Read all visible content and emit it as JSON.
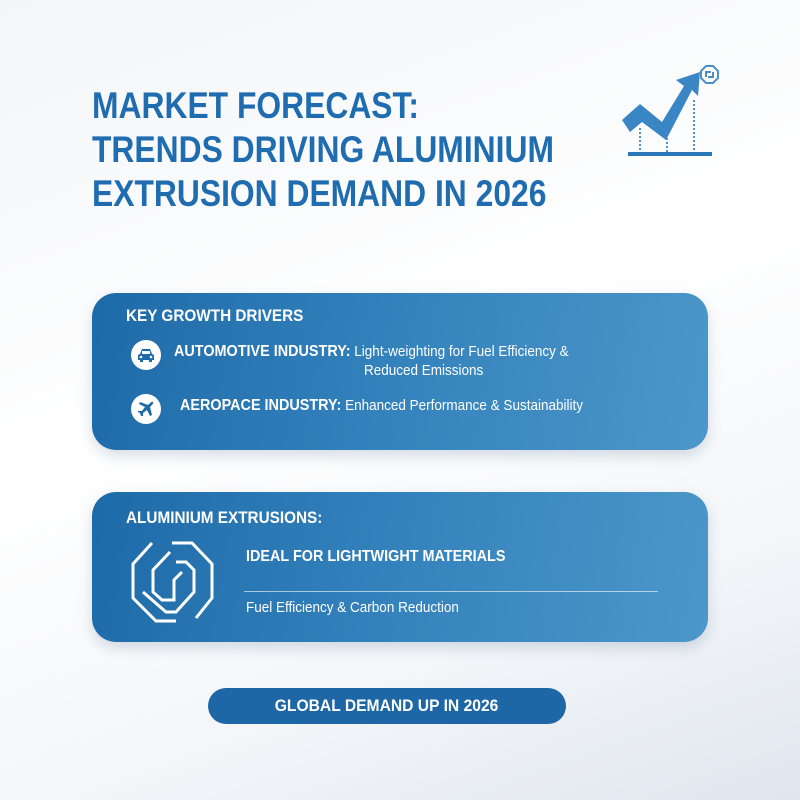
{
  "title": {
    "line1": "MARKET FORECAST:",
    "line2": "TRENDS DRIVING ALUMINIUM",
    "line3": "EXTRUSION DEMAND IN 2026"
  },
  "drivers": {
    "heading": "KEY GROWTH DRIVERS",
    "items": [
      {
        "icon": "car-icon",
        "label": "AUTOMOTIVE INDUSTRY:",
        "text": "Light-weighting for Fuel Efficiency &",
        "text2": "Reduced Emissions"
      },
      {
        "icon": "airplane-icon",
        "label": "AEROPACE INDUSTRY:",
        "text": "Enhanced Performance & Sustainability"
      }
    ]
  },
  "extrusions": {
    "heading": "ALUMINIUM EXTRUSIONS:",
    "subheading": "IDEAL FOR LIGHTWIGHT MATERIALS",
    "detail": "Fuel Efficiency & Carbon Reduction"
  },
  "footer": {
    "badge": "GLOBAL DEMAND UP IN 2026"
  },
  "colors": {
    "brand_blue": "#1f6db0",
    "card_start": "#1d6aa8",
    "card_end": "#4c97c9"
  }
}
